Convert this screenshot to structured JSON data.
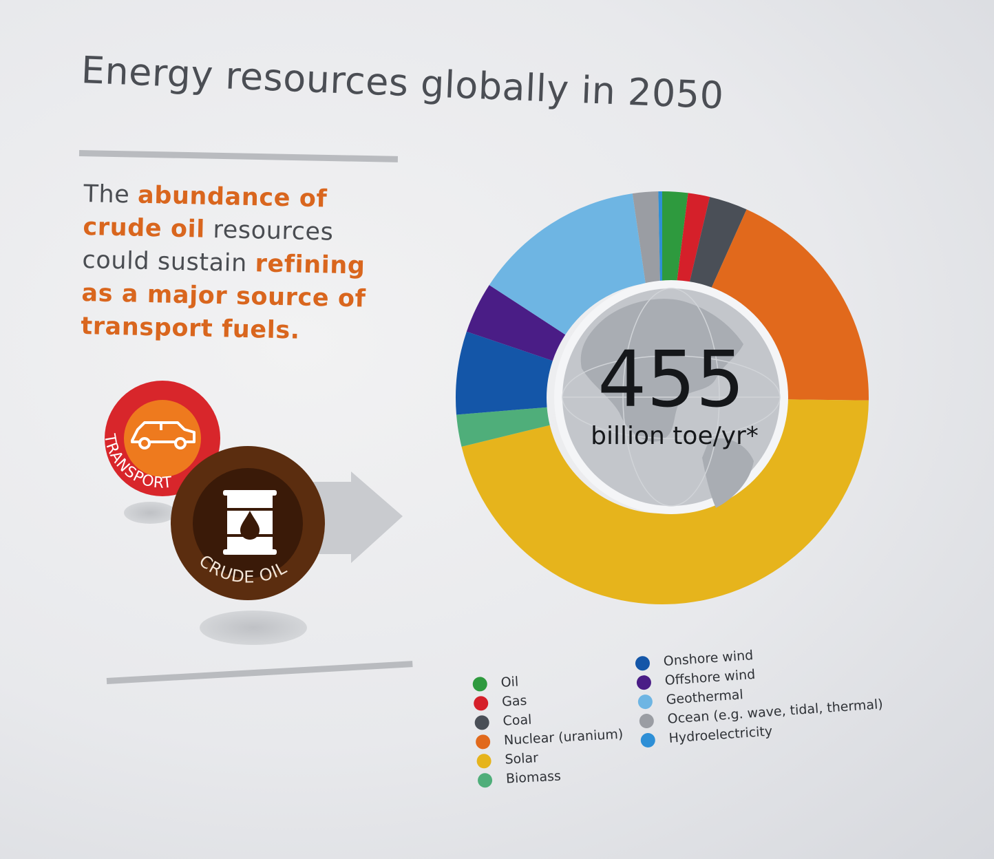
{
  "title": "Energy resources globally in 2050",
  "statement": {
    "p1": "The ",
    "h1": "abundance of crude oil",
    "p2": " resources could sustain ",
    "h2": "refining as a major source of transport fuels."
  },
  "badges": {
    "transport_label": "TRANSPORT",
    "crude_oil_label": "CRUDE OIL"
  },
  "center": {
    "value": "455",
    "unit": "billion toe/yr*"
  },
  "chart_data": {
    "type": "pie",
    "donut": true,
    "title": "Energy resources globally in 2050",
    "total": 455,
    "unit": "billion toe/yr*",
    "slices": [
      {
        "label": "Oil",
        "value": 2.0,
        "color": "#2e9a3e"
      },
      {
        "label": "Gas",
        "value": 1.7,
        "color": "#d5202a"
      },
      {
        "label": "Coal",
        "value": 3.0,
        "color": "#4a4f57"
      },
      {
        "label": "Nuclear (uranium)",
        "value": 18.5,
        "color": "#e1691c"
      },
      {
        "label": "Solar",
        "value": 46.0,
        "color": "#e6b41c"
      },
      {
        "label": "Biomass",
        "value": 2.5,
        "color": "#4fae7a"
      },
      {
        "label": "Onshore wind",
        "value": 6.5,
        "color": "#1456a8"
      },
      {
        "label": "Offshore wind",
        "value": 4.0,
        "color": "#4a1d86"
      },
      {
        "label": "Geothermal",
        "value": 13.5,
        "color": "#6eb5e3"
      },
      {
        "label": "Ocean (e.g. wave, tidal, thermal)",
        "value": 2.0,
        "color": "#9a9da3"
      },
      {
        "label": "Hydroelectricity",
        "value": 0.3,
        "color": "#2e8fd6"
      }
    ],
    "legend": {
      "col1": [
        "Oil",
        "Gas",
        "Coal",
        "Nuclear (uranium)",
        "Solar",
        "Biomass"
      ],
      "col2": [
        "Onshore wind",
        "Offshore wind",
        "Geothermal",
        "Ocean (e.g. wave, tidal, thermal)",
        "Hydroelectricity"
      ]
    }
  }
}
